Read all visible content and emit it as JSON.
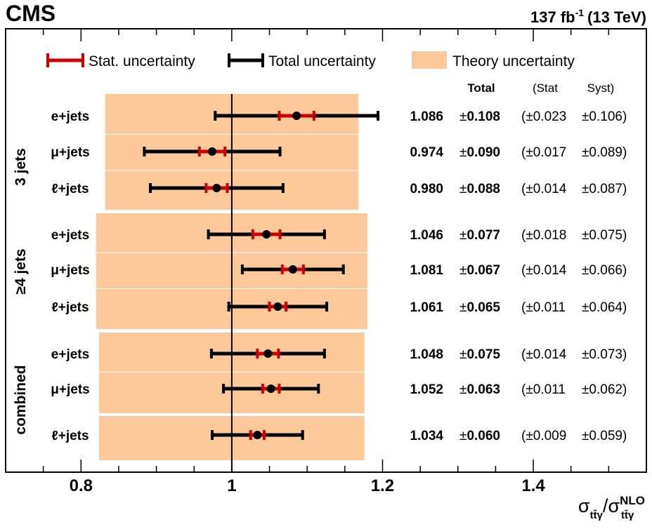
{
  "header": {
    "experiment": "CMS",
    "lumi_value": "137 fb",
    "lumi_exp": "-1",
    "lumi_energy": "(13 TeV)"
  },
  "legend": {
    "stat": "Stat. uncertainty",
    "total": "Total uncertainty",
    "theory": "Theory uncertainty"
  },
  "columns": {
    "total": "Total",
    "stat": "(Stat",
    "syst": "Syst)"
  },
  "xaxis": {
    "label_sigma": "σ",
    "label_sub": "tt̄γ",
    "label_slash": "/",
    "label_sup": "NLO"
  },
  "colors": {
    "stat": "#cc0000",
    "total": "#000000",
    "theory": "#fdc89a",
    "marker": "#000000"
  },
  "chart_data": {
    "type": "forest",
    "xlim": [
      0.7,
      1.55
    ],
    "xticks": [
      0.8,
      1,
      1.2,
      1.4
    ],
    "xtick_labels": [
      "0.8",
      "1",
      "1.2",
      "1.4"
    ],
    "reference_line": 1,
    "groups": [
      {
        "name": "3 jets",
        "theory_band": [
          0.832,
          1.168
        ],
        "rows": [
          {
            "label": "e+jets",
            "value": 1.086,
            "total": 0.108,
            "stat": 0.023,
            "syst": 0.106,
            "value_text": "1.086",
            "total_text": "0.108",
            "stat_text": "(±0.023",
            "syst_text": "±0.106)"
          },
          {
            "label": "μ+jets",
            "value": 0.974,
            "total": 0.09,
            "stat": 0.017,
            "syst": 0.089,
            "value_text": "0.974",
            "total_text": "0.090",
            "stat_text": "(±0.017",
            "syst_text": "±0.089)"
          },
          {
            "label": "ℓ+jets",
            "value": 0.98,
            "total": 0.088,
            "stat": 0.014,
            "syst": 0.087,
            "value_text": "0.980",
            "total_text": "0.088",
            "stat_text": "(±0.014",
            "syst_text": "±0.087)"
          }
        ]
      },
      {
        "name": "≥4 jets",
        "theory_band": [
          0.82,
          1.18
        ],
        "rows": [
          {
            "label": "e+jets",
            "value": 1.046,
            "total": 0.077,
            "stat": 0.018,
            "syst": 0.075,
            "value_text": "1.046",
            "total_text": "0.077",
            "stat_text": "(±0.018",
            "syst_text": "±0.075)"
          },
          {
            "label": "μ+jets",
            "value": 1.081,
            "total": 0.067,
            "stat": 0.014,
            "syst": 0.066,
            "value_text": "1.081",
            "total_text": "0.067",
            "stat_text": "(±0.014",
            "syst_text": "±0.066)"
          },
          {
            "label": "ℓ+jets",
            "value": 1.061,
            "total": 0.065,
            "stat": 0.011,
            "syst": 0.064,
            "value_text": "1.061",
            "total_text": "0.065",
            "stat_text": "(±0.011",
            "syst_text": "±0.064)"
          }
        ]
      },
      {
        "name": "combined",
        "theory_band": [
          0.824,
          1.176
        ],
        "rows": [
          {
            "label": "e+jets",
            "value": 1.048,
            "total": 0.075,
            "stat": 0.014,
            "syst": 0.073,
            "value_text": "1.048",
            "total_text": "0.075",
            "stat_text": "(±0.014",
            "syst_text": "±0.073)"
          },
          {
            "label": "μ+jets",
            "value": 1.052,
            "total": 0.063,
            "stat": 0.011,
            "syst": 0.062,
            "value_text": "1.052",
            "total_text": "0.063",
            "stat_text": "(±0.011",
            "syst_text": "±0.062)"
          },
          {
            "label": "ℓ+jets",
            "value": 1.034,
            "total": 0.06,
            "stat": 0.009,
            "syst": 0.059,
            "value_text": "1.034",
            "total_text": "0.060",
            "stat_text": "(±0.009",
            "syst_text": "±0.059)"
          }
        ]
      }
    ]
  }
}
